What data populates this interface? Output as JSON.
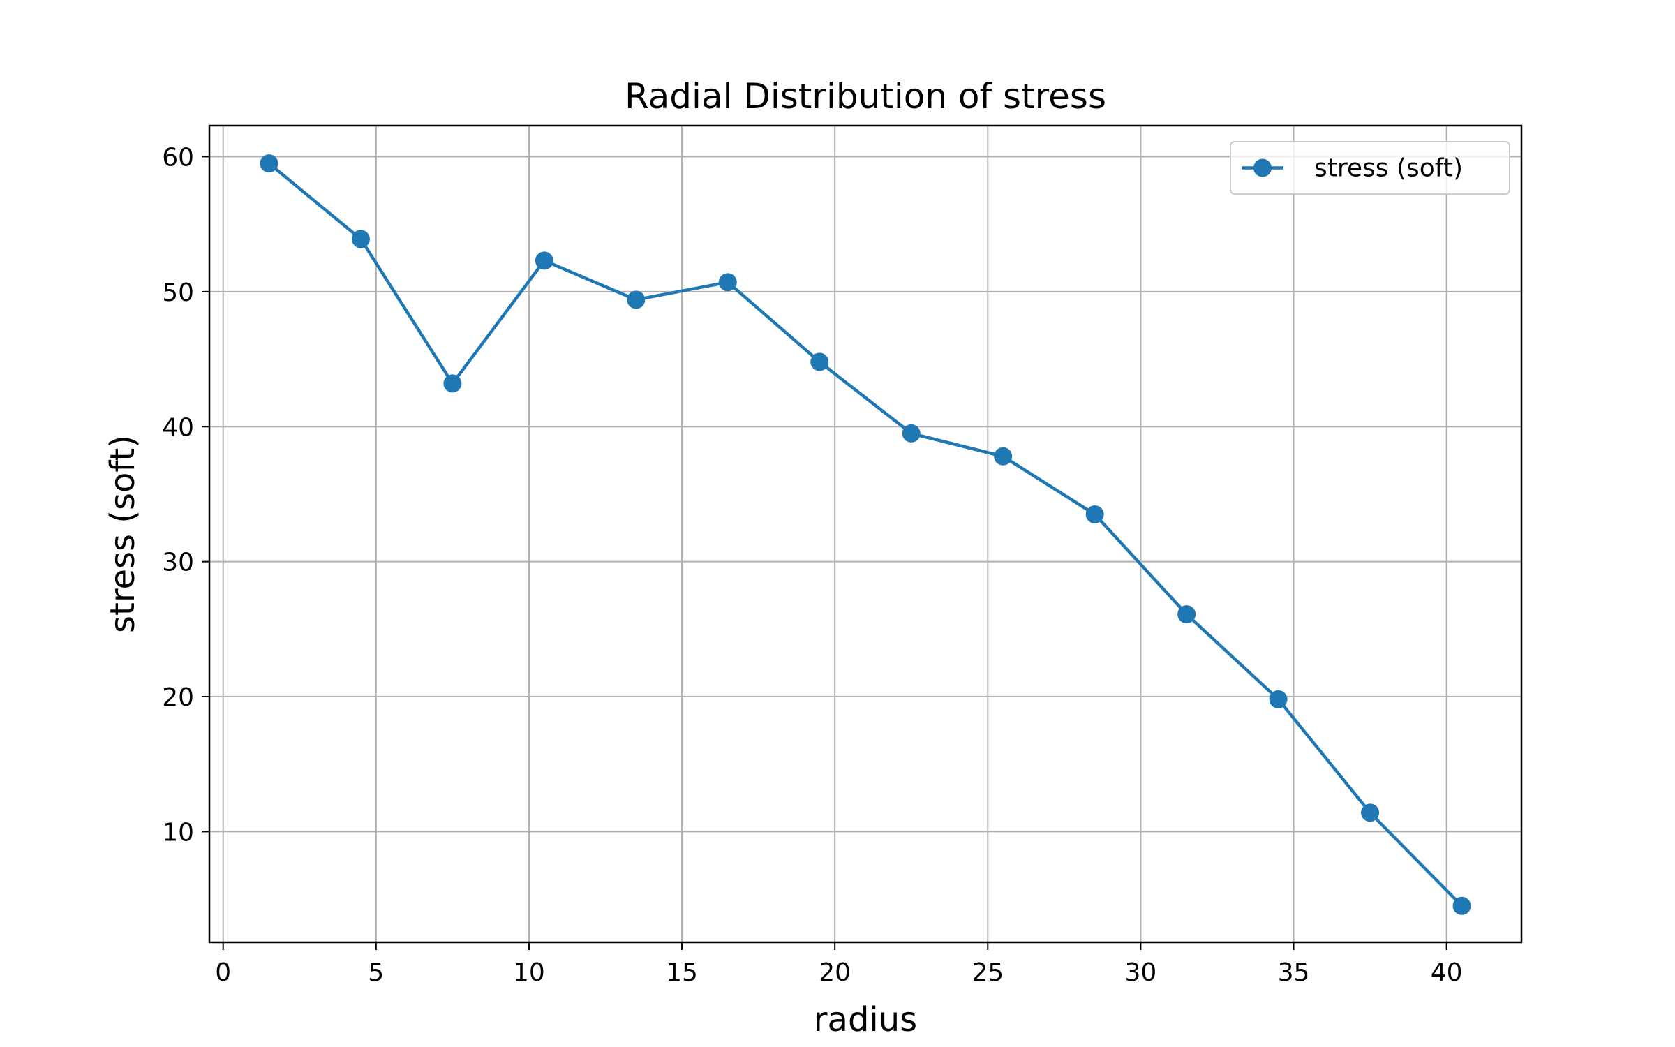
{
  "chart_data": {
    "type": "line",
    "title": "Radial Distribution of stress",
    "xlabel": "radius",
    "ylabel": "stress (soft)",
    "xlim": [
      -0.45,
      42.45
    ],
    "ylim": [
      1.8,
      62.3
    ],
    "xticks": [
      0,
      5,
      10,
      15,
      20,
      25,
      30,
      35,
      40
    ],
    "yticks": [
      10,
      20,
      30,
      40,
      50,
      60
    ],
    "grid": true,
    "legend_position": "upper right",
    "series": [
      {
        "name": "stress (soft)",
        "color": "#1f77b4",
        "marker": "circle",
        "x": [
          1.5,
          4.5,
          7.5,
          10.5,
          13.5,
          16.5,
          19.5,
          22.5,
          25.5,
          28.5,
          31.5,
          34.5,
          37.5,
          40.5
        ],
        "y": [
          59.5,
          53.9,
          43.2,
          52.3,
          49.4,
          50.7,
          44.8,
          39.5,
          37.8,
          33.5,
          26.1,
          19.8,
          11.4,
          4.5
        ]
      }
    ]
  }
}
